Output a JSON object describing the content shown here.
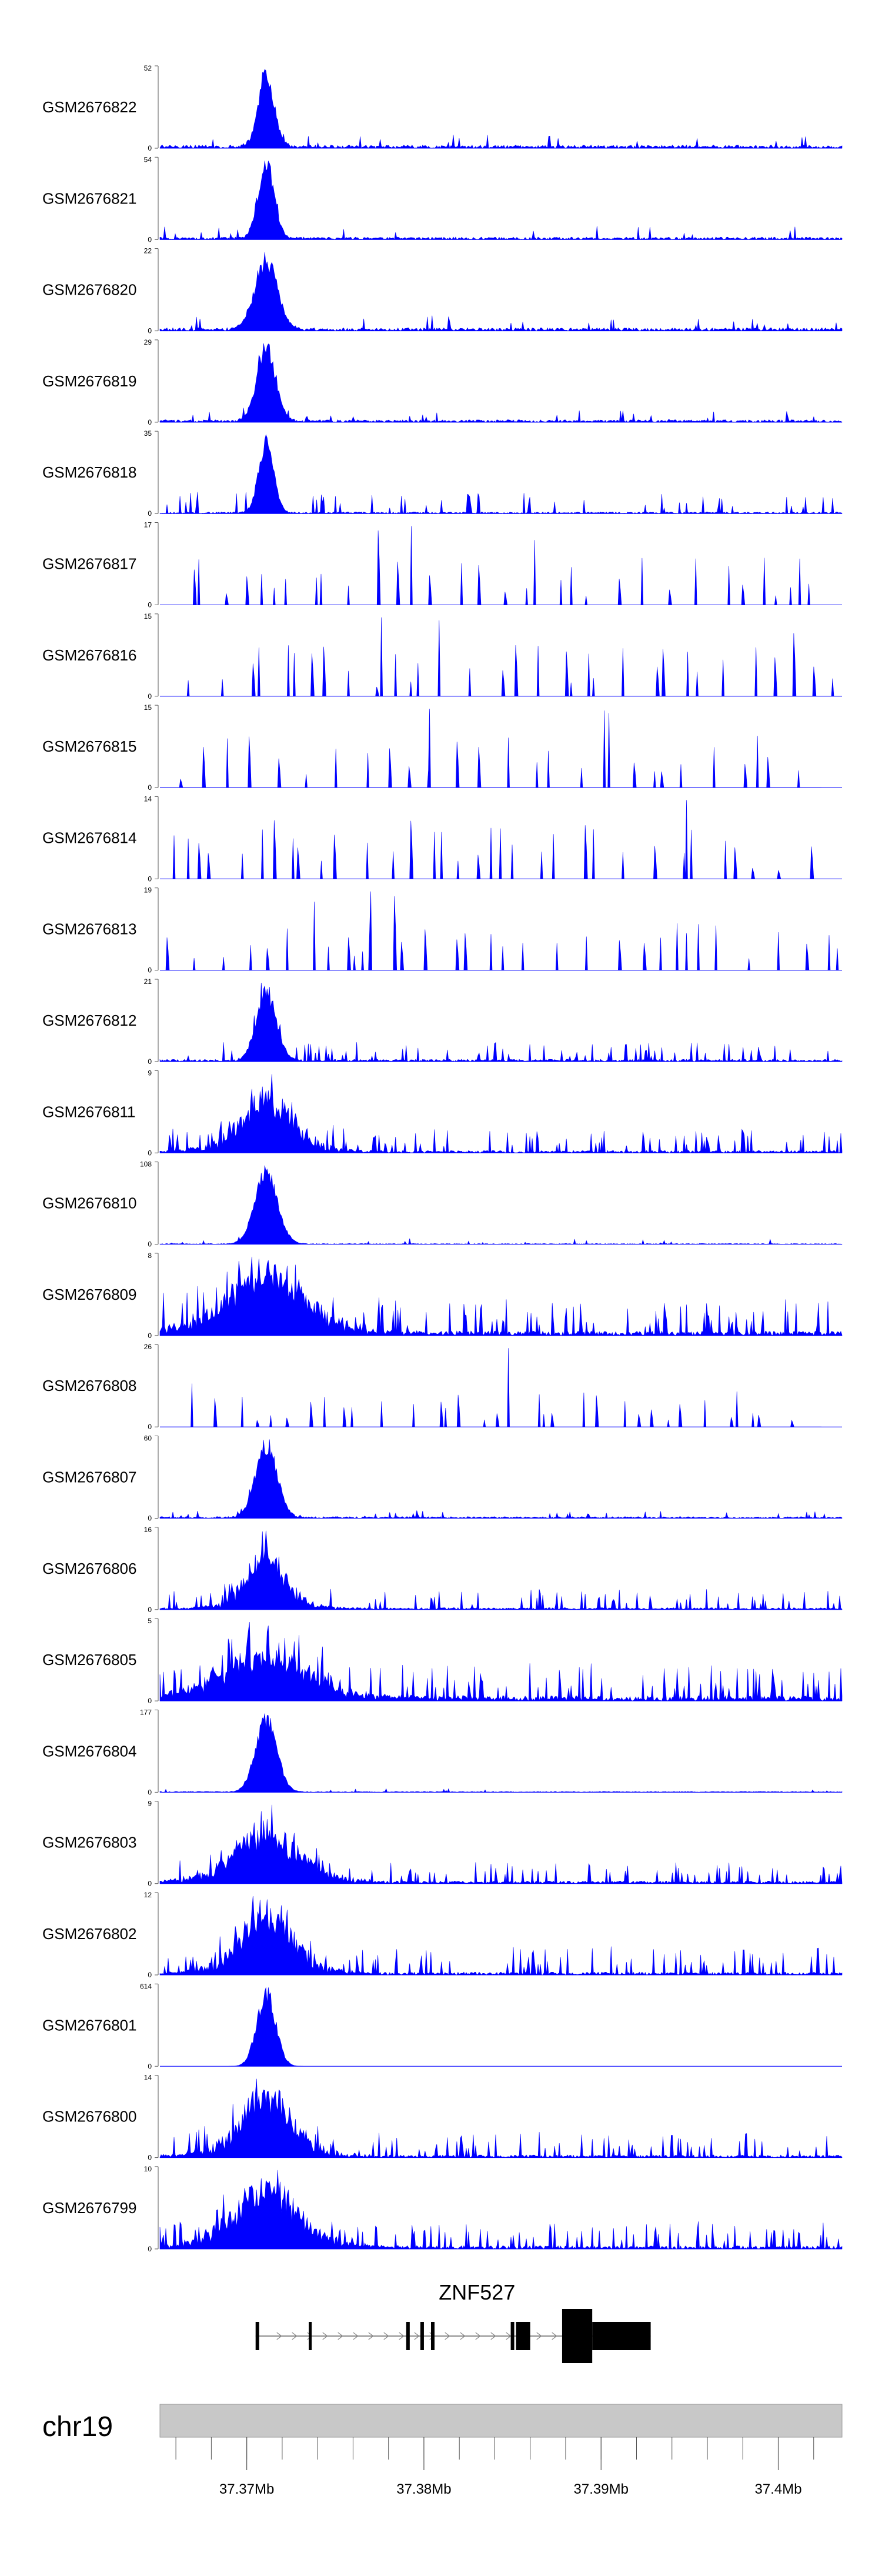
{
  "chart_data": {
    "type": "area",
    "title": "",
    "region": {
      "chromosome": "chr19",
      "start_mb": 37.3651,
      "end_mb": 37.4036
    },
    "colors": {
      "signal": "#0000ff",
      "gene": "#000000",
      "ideogram": "#c8c8c8",
      "axis": "#555555"
    },
    "tracks": [
      {
        "name": "GSM2676822",
        "ymax": "52",
        "ymax_value": 52,
        "pattern": "peak",
        "peak_amp": 1.0,
        "peak_width": 0.35,
        "bg": 0.04,
        "spike_prob": 0.15,
        "scale": 0.12,
        "coverage": "full",
        "seed": 11
      },
      {
        "name": "GSM2676821",
        "ymax": "54",
        "ymax_value": 54,
        "pattern": "peak",
        "peak_amp": 1.0,
        "peak_width": 0.35,
        "bg": 0.03,
        "spike_prob": 0.12,
        "scale": 0.12,
        "coverage": "full",
        "seed": 12
      },
      {
        "name": "GSM2676820",
        "ymax": "22",
        "ymax_value": 22,
        "pattern": "peak",
        "peak_amp": 1.0,
        "peak_width": 0.6,
        "bg": 0.04,
        "spike_prob": 0.18,
        "scale": 0.13,
        "coverage": "full",
        "seed": 13
      },
      {
        "name": "GSM2676819",
        "ymax": "29",
        "ymax_value": 29,
        "pattern": "peak",
        "peak_amp": 1.0,
        "peak_width": 0.45,
        "bg": 0.03,
        "spike_prob": 0.15,
        "scale": 0.1,
        "coverage": "full",
        "seed": 14
      },
      {
        "name": "GSM2676818",
        "ymax": "35",
        "ymax_value": 35,
        "pattern": "peak",
        "peak_amp": 1.0,
        "peak_width": 0.3,
        "bg": 0.02,
        "spike_prob": 0.35,
        "scale": 0.2,
        "coverage": "full",
        "seed": 15
      },
      {
        "name": "GSM2676817",
        "ymax": "17",
        "ymax_value": 17,
        "pattern": "sparse",
        "peak_amp": 0.0,
        "peak_width": 0.4,
        "bg": 0.0,
        "spike_prob": 0.55,
        "scale": 0.6,
        "coverage": "partial",
        "seed": 16
      },
      {
        "name": "GSM2676816",
        "ymax": "15",
        "ymax_value": 15,
        "pattern": "sparse",
        "peak_amp": 0.0,
        "peak_width": 0.4,
        "bg": 0.0,
        "spike_prob": 0.6,
        "scale": 0.65,
        "coverage": "full",
        "seed": 17
      },
      {
        "name": "GSM2676815",
        "ymax": "15",
        "ymax_value": 15,
        "pattern": "sparse",
        "peak_amp": 0.0,
        "peak_width": 0.4,
        "bg": 0.0,
        "spike_prob": 0.45,
        "scale": 0.7,
        "coverage": "partial",
        "seed": 18
      },
      {
        "name": "GSM2676814",
        "ymax": "14",
        "ymax_value": 14,
        "pattern": "sparse",
        "peak_amp": 0.0,
        "peak_width": 0.4,
        "bg": 0.0,
        "spike_prob": 0.6,
        "scale": 0.65,
        "coverage": "full",
        "seed": 19
      },
      {
        "name": "GSM2676813",
        "ymax": "19",
        "ymax_value": 19,
        "pattern": "sparse",
        "peak_amp": 0.0,
        "peak_width": 0.4,
        "bg": 0.0,
        "spike_prob": 0.5,
        "scale": 0.6,
        "coverage": "full",
        "seed": 20
      },
      {
        "name": "GSM2676812",
        "ymax": "21",
        "ymax_value": 21,
        "pattern": "peak",
        "peak_amp": 1.0,
        "peak_width": 0.5,
        "bg": 0.03,
        "spike_prob": 0.45,
        "scale": 0.18,
        "coverage": "full",
        "seed": 21
      },
      {
        "name": "GSM2676811",
        "ymax": "9",
        "ymax_value": 9,
        "pattern": "broad",
        "peak_amp": 0.9,
        "peak_width": 1.4,
        "bg": 0.05,
        "spike_prob": 0.55,
        "scale": 0.35,
        "coverage": "full",
        "seed": 22
      },
      {
        "name": "GSM2676810",
        "ymax": "108",
        "ymax_value": 108,
        "pattern": "peak",
        "peak_amp": 1.0,
        "peak_width": 0.6,
        "bg": 0.01,
        "spike_prob": 0.1,
        "scale": 0.05,
        "coverage": "full",
        "seed": 23
      },
      {
        "name": "GSM2676809",
        "ymax": "8",
        "ymax_value": 8,
        "pattern": "broad",
        "peak_amp": 0.85,
        "peak_width": 2.2,
        "bg": 0.08,
        "spike_prob": 0.6,
        "scale": 0.45,
        "coverage": "full",
        "seed": 24
      },
      {
        "name": "GSM2676808",
        "ymax": "26",
        "ymax_value": 26,
        "pattern": "sparse",
        "peak_amp": 0.0,
        "peak_width": 0.4,
        "bg": 0.0,
        "spike_prob": 0.55,
        "scale": 0.45,
        "coverage": "partial",
        "seed": 25
      },
      {
        "name": "GSM2676807",
        "ymax": "60",
        "ymax_value": 60,
        "pattern": "peak",
        "peak_amp": 1.0,
        "peak_width": 0.55,
        "bg": 0.02,
        "spike_prob": 0.15,
        "scale": 0.06,
        "coverage": "full",
        "seed": 26
      },
      {
        "name": "GSM2676806",
        "ymax": "16",
        "ymax_value": 16,
        "pattern": "broad",
        "peak_amp": 0.95,
        "peak_width": 1.0,
        "bg": 0.04,
        "spike_prob": 0.45,
        "scale": 0.3,
        "coverage": "full",
        "seed": 27
      },
      {
        "name": "GSM2676805",
        "ymax": "5",
        "ymax_value": 5,
        "pattern": "broad",
        "peak_amp": 0.85,
        "peak_width": 2.4,
        "bg": 0.12,
        "spike_prob": 0.75,
        "scale": 0.6,
        "coverage": "full",
        "seed": 28
      },
      {
        "name": "GSM2676804",
        "ymax": "177",
        "ymax_value": 177,
        "pattern": "peak",
        "peak_amp": 1.0,
        "peak_width": 0.55,
        "bg": 0.01,
        "spike_prob": 0.1,
        "scale": 0.03,
        "coverage": "full",
        "seed": 29
      },
      {
        "name": "GSM2676803",
        "ymax": "9",
        "ymax_value": 9,
        "pattern": "broad",
        "peak_amp": 0.95,
        "peak_width": 1.8,
        "bg": 0.06,
        "spike_prob": 0.55,
        "scale": 0.35,
        "coverage": "full",
        "seed": 30
      },
      {
        "name": "GSM2676802",
        "ymax": "12",
        "ymax_value": 12,
        "pattern": "broad",
        "peak_amp": 0.9,
        "peak_width": 1.4,
        "bg": 0.05,
        "spike_prob": 0.55,
        "scale": 0.35,
        "coverage": "full",
        "seed": 31
      },
      {
        "name": "GSM2676801",
        "ymax": "614",
        "ymax_value": 614,
        "pattern": "peak",
        "peak_amp": 1.0,
        "peak_width": 0.45,
        "bg": 0.0,
        "spike_prob": 0.0,
        "scale": 0.01,
        "coverage": "full",
        "seed": 32
      },
      {
        "name": "GSM2676800",
        "ymax": "14",
        "ymax_value": 14,
        "pattern": "broad",
        "peak_amp": 0.95,
        "peak_width": 1.4,
        "bg": 0.05,
        "spike_prob": 0.55,
        "scale": 0.33,
        "coverage": "full",
        "seed": 33
      },
      {
        "name": "GSM2676799",
        "ymax": "10",
        "ymax_value": 10,
        "pattern": "broad",
        "peak_amp": 0.95,
        "peak_width": 1.8,
        "bg": 0.06,
        "spike_prob": 0.55,
        "scale": 0.35,
        "coverage": "full",
        "seed": 34
      }
    ],
    "peak_center_mb": 37.3711,
    "ymin_label": "0",
    "gene": {
      "name": "ZNF527",
      "start_mb": 37.3705,
      "end_mb": 37.3928,
      "strand": "+",
      "exons_mb": [
        [
          37.3705,
          37.3707,
          "thin"
        ],
        [
          37.3735,
          37.3736,
          "thin"
        ],
        [
          37.379,
          37.3792,
          "thin"
        ],
        [
          37.3798,
          37.38,
          "thin"
        ],
        [
          37.3804,
          37.3806,
          "thin"
        ],
        [
          37.3849,
          37.3851,
          "thin"
        ],
        [
          37.3852,
          37.386,
          "thin"
        ],
        [
          37.3878,
          37.3895,
          "thick"
        ],
        [
          37.3895,
          37.3928,
          "utr"
        ]
      ]
    },
    "x_axis": {
      "ticks_mb": [
        37.37,
        37.38,
        37.39,
        37.4
      ],
      "tick_labels": [
        "37.37Mb",
        "37.38Mb",
        "37.39Mb",
        "37.4Mb"
      ],
      "minor_step_mb": 0.002
    }
  }
}
